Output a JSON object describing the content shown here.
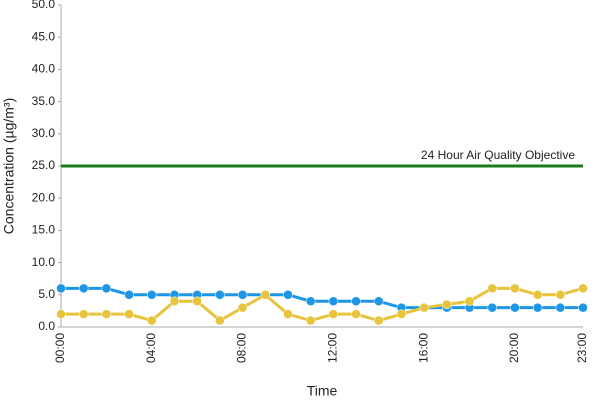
{
  "chart_data": {
    "type": "line",
    "x_label": "Time",
    "y_label": "Concentration (µg/m³)",
    "categories": [
      "00:00",
      null,
      null,
      null,
      "04:00",
      null,
      null,
      null,
      "08:00",
      null,
      null,
      null,
      "12:00",
      null,
      null,
      null,
      "16:00",
      null,
      null,
      null,
      "20:00",
      null,
      null,
      "23:00"
    ],
    "series": [
      {
        "color": "#1e96e6",
        "values": [
          6,
          6,
          6,
          5,
          5,
          5,
          5,
          5,
          5,
          5,
          5,
          4,
          4,
          4,
          4,
          3,
          3,
          3,
          3,
          3,
          3,
          3,
          3,
          3
        ]
      },
      {
        "color": "#e8c43c",
        "values": [
          2,
          2,
          2,
          2,
          1,
          4,
          4,
          1,
          3,
          5,
          2,
          1,
          2,
          2,
          1,
          2,
          3,
          3.5,
          4,
          6,
          6,
          5,
          5,
          6
        ]
      }
    ],
    "reference_line": {
      "value": 25,
      "label": "24 Hour Air Quality Objective",
      "color": "#1a7a1a"
    },
    "ylim": [
      0,
      50
    ],
    "yticks": [
      {
        "value": 0,
        "label": "0.0"
      },
      {
        "value": 5,
        "label": "5.0"
      },
      {
        "value": 10,
        "label": "10.0"
      },
      {
        "value": 15,
        "label": "15.0"
      },
      {
        "value": 20,
        "label": "20.0"
      },
      {
        "value": 25,
        "label": "25.0"
      },
      {
        "value": 30,
        "label": "30.0"
      },
      {
        "value": 35,
        "label": "35.0"
      },
      {
        "value": 40,
        "label": "40.0"
      },
      {
        "value": 45,
        "label": "45.0"
      },
      {
        "value": 50,
        "label": "50.0"
      }
    ],
    "grid": false
  }
}
